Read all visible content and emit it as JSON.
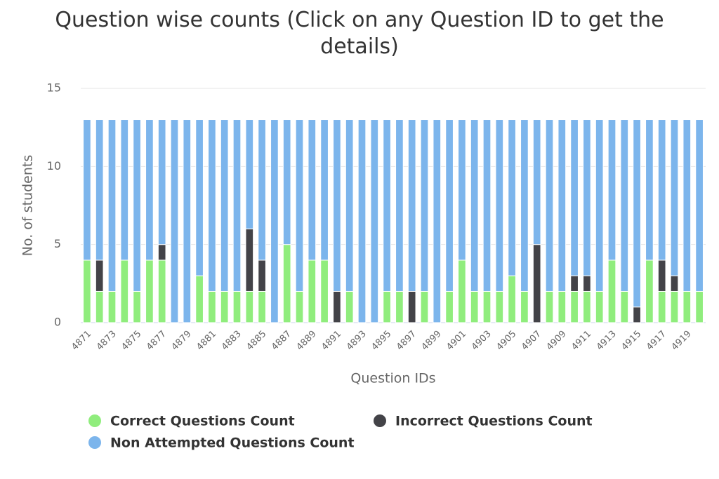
{
  "chart_data": {
    "type": "stacked_bar",
    "title": "Question wise counts (Click on any Question ID to get the details)",
    "x_label": "Question IDs",
    "y_label": "No. of students",
    "categories": [
      "4871",
      null,
      "4873",
      null,
      "4875",
      null,
      "4877",
      null,
      "4879",
      null,
      "4881",
      null,
      "4883",
      null,
      "4885",
      null,
      "4887",
      null,
      "4889",
      null,
      "4891",
      null,
      "4893",
      null,
      "4895",
      null,
      "4897",
      null,
      "4899",
      null,
      "4901",
      null,
      "4903",
      null,
      "4905",
      null,
      "4907",
      null,
      "4909",
      null,
      "4911",
      null,
      "4913",
      null,
      "4915",
      null,
      "4917",
      null,
      "4919",
      null
    ],
    "series": [
      {
        "name": "Correct Questions Count",
        "color": "#90ed7d",
        "values": [
          4,
          2,
          2,
          4,
          2,
          4,
          4,
          0,
          0,
          3,
          2,
          2,
          2,
          2,
          2,
          0,
          5,
          2,
          4,
          4,
          0,
          2,
          0,
          0,
          2,
          2,
          0,
          2,
          0,
          2,
          4,
          2,
          2,
          2,
          3,
          2,
          0,
          2,
          2,
          2,
          2,
          2,
          4,
          2,
          0,
          4,
          2,
          2,
          2,
          2
        ]
      },
      {
        "name": "Incorrect Questions Count",
        "color": "#434348",
        "values": [
          0,
          2,
          0,
          0,
          0,
          0,
          1,
          0,
          0,
          0,
          0,
          0,
          0,
          4,
          2,
          0,
          0,
          0,
          0,
          0,
          2,
          0,
          0,
          0,
          0,
          0,
          2,
          0,
          0,
          0,
          0,
          0,
          0,
          0,
          0,
          0,
          5,
          0,
          0,
          1,
          1,
          0,
          0,
          0,
          1,
          0,
          2,
          1,
          0,
          0
        ]
      },
      {
        "name": "Non Attempted Questions Count",
        "color": "#7cb5ec",
        "values": [
          9,
          9,
          11,
          9,
          11,
          9,
          8,
          13,
          13,
          10,
          11,
          11,
          11,
          7,
          9,
          13,
          8,
          11,
          9,
          9,
          11,
          11,
          13,
          13,
          11,
          11,
          11,
          11,
          13,
          11,
          9,
          11,
          11,
          11,
          10,
          11,
          8,
          11,
          11,
          10,
          10,
          11,
          9,
          11,
          12,
          9,
          9,
          10,
          11,
          11
        ]
      }
    ],
    "ylim": [
      0,
      15
    ],
    "yticks": [
      0,
      5,
      10,
      15
    ],
    "grid": true
  }
}
